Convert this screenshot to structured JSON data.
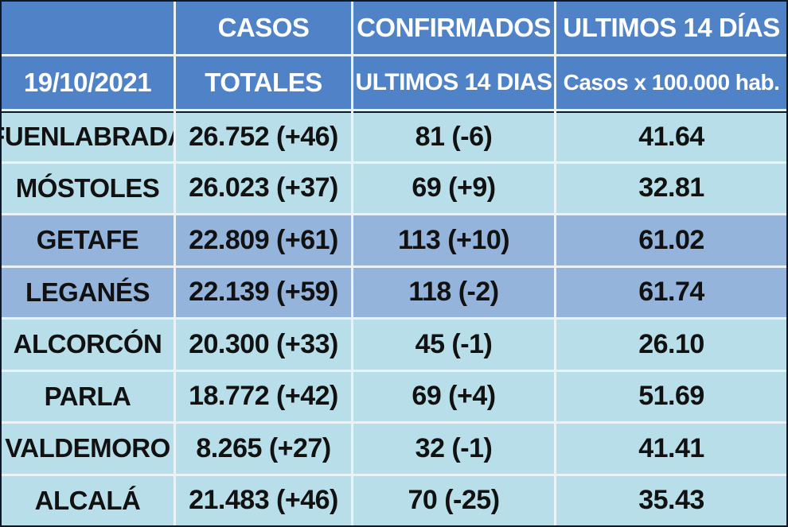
{
  "header": {
    "row1": [
      "",
      "CASOS",
      "CONFIRMADOS",
      "ULTIMOS 14 DÍAS"
    ],
    "row2": [
      "19/10/2021",
      "TOTALES",
      "ULTIMOS 14 DIAS",
      "Casos x 100.000 hab."
    ]
  },
  "rows": [
    {
      "municipio": "FUENLABRADA",
      "casos_totales": "26.752 (+46)",
      "confirmados_14": "81 (-6)",
      "casos_100k": "41.64",
      "shade": "light"
    },
    {
      "municipio": "MÓSTOLES",
      "casos_totales": "26.023 (+37)",
      "confirmados_14": "69 (+9)",
      "casos_100k": "32.81",
      "shade": "light"
    },
    {
      "municipio": "GETAFE",
      "casos_totales": "22.809 (+61)",
      "confirmados_14": "113 (+10)",
      "casos_100k": "61.02",
      "shade": "dark"
    },
    {
      "municipio": "LEGANÉS",
      "casos_totales": "22.139 (+59)",
      "confirmados_14": "118 (-2)",
      "casos_100k": "61.74",
      "shade": "dark"
    },
    {
      "municipio": "ALCORCÓN",
      "casos_totales": "20.300 (+33)",
      "confirmados_14": "45 (-1)",
      "casos_100k": "26.10",
      "shade": "light"
    },
    {
      "municipio": "PARLA",
      "casos_totales": "18.772 (+42)",
      "confirmados_14": "69 (+4)",
      "casos_100k": "51.69",
      "shade": "light"
    },
    {
      "municipio": "VALDEMORO",
      "casos_totales": "8.265 (+27)",
      "confirmados_14": "32 (-1)",
      "casos_100k": "41.41",
      "shade": "light"
    },
    {
      "municipio": "ALCALÁ",
      "casos_totales": "21.483 (+46)",
      "confirmados_14": "70 (-25)",
      "casos_100k": "35.43",
      "shade": "light"
    }
  ],
  "colors": {
    "header_bg": "#4f82c6",
    "row_light": "#b8dfe9",
    "row_dark": "#94b4dc",
    "border": "#0f1724"
  }
}
